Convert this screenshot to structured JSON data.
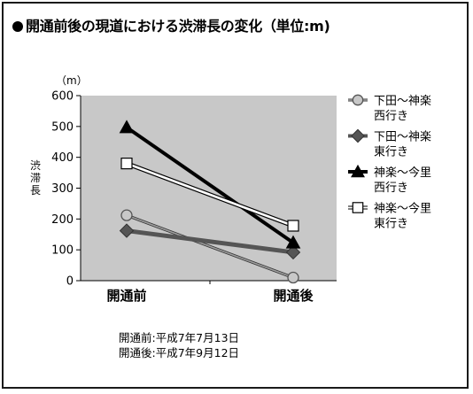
{
  "chart_data": {
    "type": "line",
    "title": "開通前後の現道における渋滞長の変化（単位:m)",
    "ylabel": "渋滞長",
    "yunit": "（m）",
    "ylim": [
      0,
      600
    ],
    "yticks": [
      0,
      100,
      200,
      300,
      400,
      500,
      600
    ],
    "categories": [
      "開通前",
      "開通後"
    ],
    "grid": false,
    "plot_background": "#c8c8c8",
    "legend_position": "right",
    "series": [
      {
        "name_line1": "下田～神楽",
        "name_line2": "西行き",
        "values": [
          212,
          10
        ],
        "marker": "circle",
        "line_color": "#8a8a8a",
        "fill": "#c8c8c8"
      },
      {
        "name_line1": "下田～神楽",
        "name_line2": "東行き",
        "values": [
          162,
          92
        ],
        "marker": "diamond",
        "line_color": "#555555",
        "fill": "#555555"
      },
      {
        "name_line1": "神楽～今里",
        "name_line2": "西行き",
        "values": [
          497,
          123
        ],
        "marker": "triangle",
        "line_color": "#000000",
        "fill": "#000000"
      },
      {
        "name_line1": "神楽～今里",
        "name_line2": "東行き",
        "values": [
          380,
          178
        ],
        "marker": "square",
        "line_color": "#ffffff",
        "fill": "#ffffff"
      }
    ]
  },
  "notes": {
    "before": "開通前:平成7年7月13日",
    "after": "開通後:平成7年9月12日"
  }
}
